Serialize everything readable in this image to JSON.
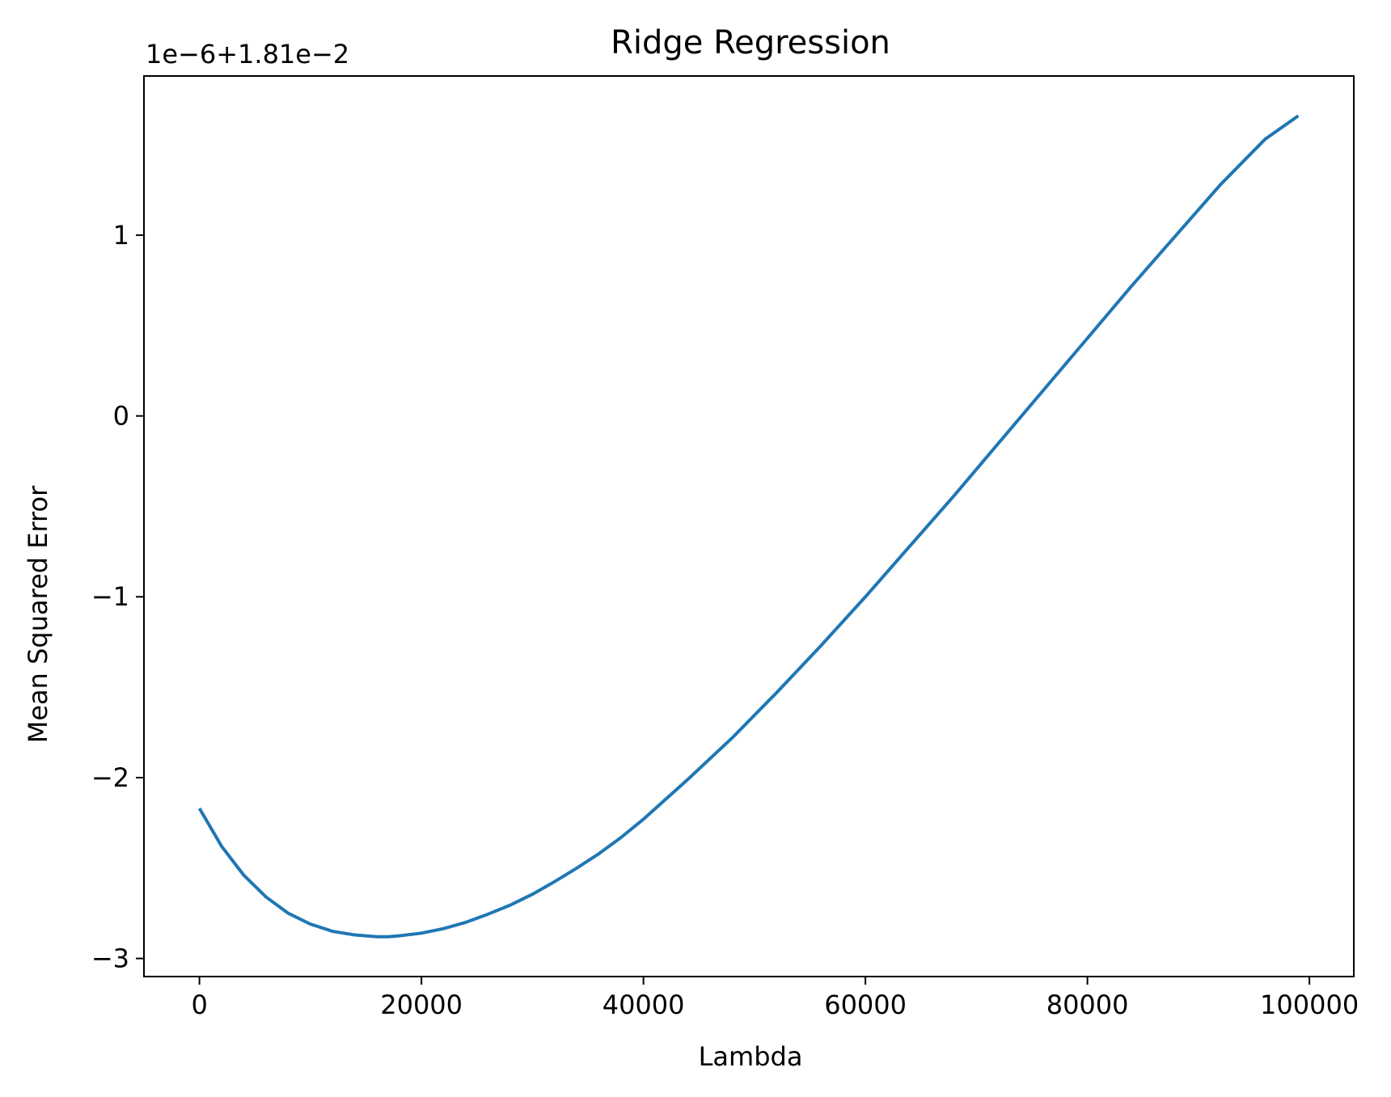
{
  "chart_data": {
    "type": "line",
    "title": "Ridge Regression",
    "xlabel": "Lambda",
    "ylabel": "Mean Squared Error",
    "y_offset_text": "1e−6+1.81e−2",
    "xlim": [
      -5000,
      104000
    ],
    "ylim": [
      -3.1,
      1.88
    ],
    "x_ticks": [
      0,
      20000,
      40000,
      60000,
      80000,
      100000
    ],
    "x_tick_labels": [
      "0",
      "20000",
      "40000",
      "60000",
      "80000",
      "100000"
    ],
    "y_ticks": [
      -3,
      -2,
      -1,
      0,
      1
    ],
    "y_tick_labels": [
      "−3",
      "−2",
      "−1",
      "0",
      "1"
    ],
    "grid": false,
    "line_color": "#1f77b4",
    "series": [
      {
        "x": [
          0,
          2000,
          4000,
          6000,
          8000,
          10000,
          12000,
          14000,
          16000,
          17000,
          18000,
          20000,
          22000,
          24000,
          26000,
          28000,
          30000,
          32000,
          34000,
          36000,
          38000,
          40000,
          44000,
          48000,
          52000,
          56000,
          60000,
          64000,
          68000,
          72000,
          76000,
          80000,
          84000,
          88000,
          92000,
          96000,
          99000
        ],
        "values": [
          -2.17,
          -2.38,
          -2.54,
          -2.66,
          -2.75,
          -2.81,
          -2.85,
          -2.87,
          -2.88,
          -2.88,
          -2.875,
          -2.86,
          -2.835,
          -2.8,
          -2.755,
          -2.705,
          -2.645,
          -2.575,
          -2.5,
          -2.42,
          -2.33,
          -2.23,
          -2.01,
          -1.78,
          -1.53,
          -1.27,
          -1.0,
          -0.72,
          -0.44,
          -0.15,
          0.14,
          0.43,
          0.72,
          1.0,
          1.28,
          1.53,
          1.66
        ]
      }
    ]
  }
}
